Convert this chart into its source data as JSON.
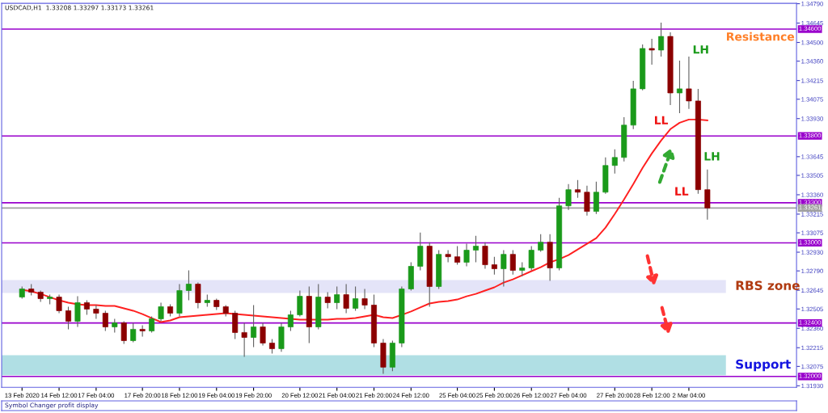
{
  "chart_data": {
    "type": "candlestick",
    "title": "USDCAD,H1  1.33208 1.33297 1.33173 1.33261",
    "categories": [
      "13 Feb 2020",
      null,
      null,
      null,
      "14 Feb 12:00",
      null,
      null,
      null,
      "17 Feb 04:00",
      null,
      null,
      null,
      null,
      "17 Feb 20:00",
      null,
      null,
      null,
      "18 Feb 12:00",
      null,
      null,
      null,
      "19 Feb 04:00",
      null,
      null,
      null,
      "19 Feb 20:00",
      null,
      null,
      null,
      null,
      "20 Feb 12:00",
      null,
      null,
      null,
      "21 Feb 04:00",
      null,
      null,
      null,
      "21 Feb 20:00",
      null,
      null,
      null,
      "24 Feb 12:00",
      null,
      null,
      null,
      null,
      "25 Feb 04:00",
      null,
      null,
      null,
      "25 Feb 20:00",
      null,
      null,
      null,
      "26 Feb 12:00",
      null,
      null,
      null,
      "27 Feb 04:00",
      null,
      null,
      null,
      null,
      "27 Feb 20:00",
      null,
      null,
      null,
      "28 Feb 12:00",
      null,
      null,
      null,
      "2 Mar 04:00",
      null,
      null
    ],
    "ohlc": [
      [
        1.32594,
        1.32673,
        1.32582,
        1.32655
      ],
      [
        1.32655,
        1.32691,
        1.32606,
        1.32631
      ],
      [
        1.32631,
        1.32643,
        1.32558,
        1.32582
      ],
      [
        1.32582,
        1.32612,
        1.3254,
        1.32594
      ],
      [
        1.32594,
        1.32612,
        1.32473,
        1.32492
      ],
      [
        1.32492,
        1.32522,
        1.32353,
        1.32413
      ],
      [
        1.32413,
        1.326,
        1.32371,
        1.32552
      ],
      [
        1.32552,
        1.3257,
        1.32461,
        1.32504
      ],
      [
        1.32504,
        1.32534,
        1.32431,
        1.32473
      ],
      [
        1.32473,
        1.32492,
        1.32341,
        1.32371
      ],
      [
        1.32371,
        1.32431,
        1.32329,
        1.32401
      ],
      [
        1.32401,
        1.32413,
        1.32244,
        1.32268
      ],
      [
        1.32268,
        1.32401,
        1.32256,
        1.32353
      ],
      [
        1.32353,
        1.32383,
        1.32298,
        1.32341
      ],
      [
        1.32341,
        1.32449,
        1.32329,
        1.32431
      ],
      [
        1.32431,
        1.32552,
        1.32413,
        1.32522
      ],
      [
        1.32522,
        1.3254,
        1.32449,
        1.32473
      ],
      [
        1.32473,
        1.32691,
        1.32449,
        1.32643
      ],
      [
        1.32643,
        1.32794,
        1.3257,
        1.32691
      ],
      [
        1.32691,
        1.32703,
        1.3251,
        1.32552
      ],
      [
        1.32552,
        1.32612,
        1.32522,
        1.3257
      ],
      [
        1.3257,
        1.32582,
        1.32498,
        1.32522
      ],
      [
        1.32522,
        1.32534,
        1.32449,
        1.32473
      ],
      [
        1.32473,
        1.32492,
        1.3228,
        1.32329
      ],
      [
        1.32329,
        1.32401,
        1.32147,
        1.32292
      ],
      [
        1.32292,
        1.32534,
        1.3222,
        1.32371
      ],
      [
        1.32371,
        1.32401,
        1.32232,
        1.3225
      ],
      [
        1.3225,
        1.3228,
        1.32171,
        1.32208
      ],
      [
        1.32208,
        1.32401,
        1.32184,
        1.32371
      ],
      [
        1.32371,
        1.32492,
        1.32341,
        1.32461
      ],
      [
        1.32461,
        1.32643,
        1.32449,
        1.326
      ],
      [
        1.326,
        1.32673,
        1.3225,
        1.32371
      ],
      [
        1.32371,
        1.32691,
        1.32353,
        1.32594
      ],
      [
        1.32594,
        1.32631,
        1.3251,
        1.32552
      ],
      [
        1.32552,
        1.32673,
        1.32504,
        1.32612
      ],
      [
        1.32612,
        1.32691,
        1.32473,
        1.3251
      ],
      [
        1.3251,
        1.32673,
        1.32492,
        1.32582
      ],
      [
        1.32582,
        1.32655,
        1.32504,
        1.32534
      ],
      [
        1.32534,
        1.32612,
        1.3222,
        1.3225
      ],
      [
        1.3225,
        1.3228,
        1.3202,
        1.32069
      ],
      [
        1.32069,
        1.32268,
        1.32039,
        1.3225
      ],
      [
        1.3225,
        1.32673,
        1.3222,
        1.32655
      ],
      [
        1.32655,
        1.32854,
        1.32643,
        1.32824
      ],
      [
        1.32824,
        1.33077,
        1.32794,
        1.32975
      ],
      [
        1.32975,
        1.33005,
        1.32522,
        1.32673
      ],
      [
        1.32673,
        1.32945,
        1.32655,
        1.32914
      ],
      [
        1.32914,
        1.32945,
        1.32854,
        1.32896
      ],
      [
        1.32896,
        1.32975,
        1.32836,
        1.32854
      ],
      [
        1.32854,
        1.32993,
        1.32824,
        1.32945
      ],
      [
        1.32945,
        1.33053,
        1.32854,
        1.32975
      ],
      [
        1.32975,
        1.33005,
        1.32806,
        1.32836
      ],
      [
        1.32836,
        1.32896,
        1.32763,
        1.32806
      ],
      [
        1.32806,
        1.32945,
        1.32673,
        1.32914
      ],
      [
        1.32914,
        1.32945,
        1.32763,
        1.32794
      ],
      [
        1.32794,
        1.32854,
        1.32751,
        1.32812
      ],
      [
        1.32812,
        1.32975,
        1.32794,
        1.32945
      ],
      [
        1.32945,
        1.33065,
        1.32933,
        1.33005
      ],
      [
        1.33005,
        1.33065,
        1.32715,
        1.32812
      ],
      [
        1.32812,
        1.33337,
        1.32794,
        1.33277
      ],
      [
        1.33277,
        1.3344,
        1.33247,
        1.33398
      ],
      [
        1.33398,
        1.3347,
        1.33337,
        1.33379
      ],
      [
        1.33379,
        1.33428,
        1.33204,
        1.33235
      ],
      [
        1.33235,
        1.33458,
        1.33216,
        1.33379
      ],
      [
        1.33379,
        1.33639,
        1.33367,
        1.33579
      ],
      [
        1.33579,
        1.337,
        1.33518,
        1.33639
      ],
      [
        1.33639,
        1.33941,
        1.33609,
        1.33881
      ],
      [
        1.33881,
        1.34213,
        1.33851,
        1.34153
      ],
      [
        1.34153,
        1.34485,
        1.34141,
        1.34455
      ],
      [
        1.34455,
        1.34527,
        1.34334,
        1.34443
      ],
      [
        1.34443,
        1.34648,
        1.34394,
        1.34545
      ],
      [
        1.34545,
        1.34575,
        1.34032,
        1.34122
      ],
      [
        1.34122,
        1.34364,
        1.33971,
        1.34153
      ],
      [
        1.34153,
        1.34394,
        1.34002,
        1.34062
      ],
      [
        1.34062,
        1.34153,
        1.33367,
        1.33398
      ],
      [
        1.33398,
        1.33549,
        1.33174,
        1.33261
      ]
    ],
    "series": [
      {
        "type": "line",
        "color": "#ff2020",
        "values": [
          1.32649,
          1.32637,
          1.32618,
          1.32594,
          1.3257,
          1.32552,
          1.3254,
          1.32534,
          1.32534,
          1.32528,
          1.32528,
          1.3251,
          1.32492,
          1.32467,
          1.32437,
          1.32407,
          1.32419,
          1.32443,
          1.32449,
          1.32455,
          1.32461,
          1.32467,
          1.32473,
          1.32467,
          1.32461,
          1.32455,
          1.32449,
          1.32443,
          1.32437,
          1.32431,
          1.32425,
          1.32425,
          1.32425,
          1.32425,
          1.32431,
          1.32431,
          1.32437,
          1.32449,
          1.32461,
          1.32443,
          1.32437,
          1.32461,
          1.32486,
          1.32516,
          1.32546,
          1.32558,
          1.32564,
          1.32576,
          1.326,
          1.32618,
          1.32643,
          1.32667,
          1.32703,
          1.32727,
          1.32757,
          1.32788,
          1.32818,
          1.32854,
          1.32878,
          1.32908,
          1.32951,
          1.32993,
          1.33035,
          1.33114,
          1.33216,
          1.33325,
          1.3344,
          1.33561,
          1.33669,
          1.33766,
          1.33851,
          1.33899,
          1.33923,
          1.33923,
          1.33917
        ]
      }
    ],
    "ylim": [
      1.31918,
      1.34793
    ],
    "yticks": [
      {
        "value": 1.3193,
        "label": "1.31930"
      },
      {
        "value": 1.32075,
        "label": "1.32075"
      },
      {
        "value": 1.32215,
        "label": "1.32215"
      },
      {
        "value": 1.3236,
        "label": "1.32360"
      },
      {
        "value": 1.32505,
        "label": "1.32505"
      },
      {
        "value": 1.32645,
        "label": "1.32645"
      },
      {
        "value": 1.3279,
        "label": "1.32790"
      },
      {
        "value": 1.3293,
        "label": "1.32930"
      },
      {
        "value": 1.33075,
        "label": "1.33075"
      },
      {
        "value": 1.33215,
        "label": "1.33215"
      },
      {
        "value": 1.3336,
        "label": "1.33360"
      },
      {
        "value": 1.33505,
        "label": "1.33505"
      },
      {
        "value": 1.33645,
        "label": "1.33645"
      },
      {
        "value": 1.3393,
        "label": "1.33930"
      },
      {
        "value": 1.34075,
        "label": "1.34075"
      },
      {
        "value": 1.34215,
        "label": "1.34215"
      },
      {
        "value": 1.3436,
        "label": "1.34360"
      },
      {
        "value": 1.345,
        "label": "1.34500"
      },
      {
        "value": 1.34645,
        "label": "1.34645"
      },
      {
        "value": 1.3479,
        "label": "1.34790"
      }
    ],
    "ref_lines": [
      {
        "axis": "y",
        "value": 1.346,
        "label": "1.34600",
        "color": "#9900cc"
      },
      {
        "axis": "y",
        "value": 1.338,
        "label": "1.33800",
        "color": "#9900cc"
      },
      {
        "axis": "y",
        "value": 1.333,
        "label": "1.33300",
        "color": "#9900cc"
      },
      {
        "axis": "y",
        "value": 1.33261,
        "label": "1.33261",
        "color": "#a0a0a0"
      },
      {
        "axis": "y",
        "value": 1.33,
        "label": "1.33000",
        "color": "#9900cc"
      },
      {
        "axis": "y",
        "value": 1.324,
        "label": "1.32400",
        "color": "#9900cc"
      },
      {
        "axis": "y",
        "value": 1.32,
        "label": "1.32000",
        "color": "#9900cc"
      }
    ],
    "bands": [
      {
        "axis": "y",
        "from": 1.32625,
        "to": 1.32721,
        "label": "RBS zone",
        "color": "#e4e4f8"
      },
      {
        "axis": "y",
        "from": 1.32009,
        "to": 1.32159,
        "label": "Support",
        "color": "#b0dfe4"
      }
    ],
    "annotations": [
      "Resistance",
      "LH",
      "LL",
      "LH",
      "LL",
      "Symbol Changer profit display"
    ],
    "grid": false,
    "legend": false
  }
}
